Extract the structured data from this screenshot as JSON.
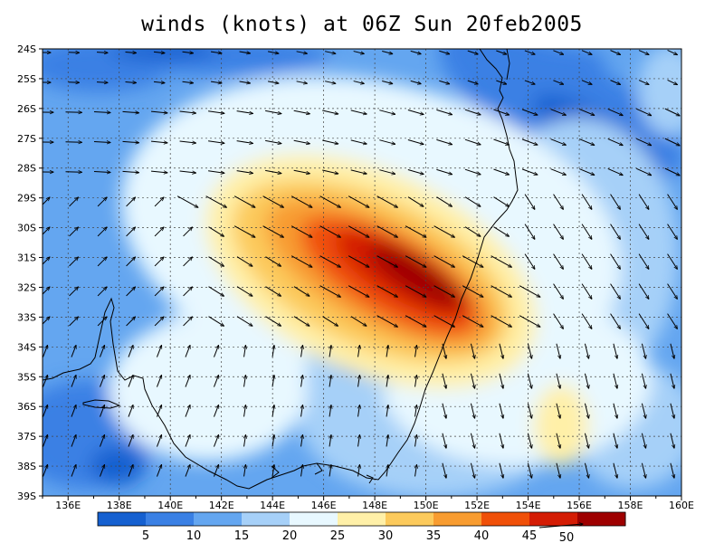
{
  "title": "winds (knots) at 06Z Sun 20feb2005",
  "map": {
    "lat_labels": [
      "24S",
      "25S",
      "26S",
      "27S",
      "28S",
      "29S",
      "30S",
      "31S",
      "32S",
      "33S",
      "34S",
      "35S",
      "36S",
      "37S",
      "38S",
      "39S"
    ],
    "lon_labels": [
      "136E",
      "138E",
      "140E",
      "142E",
      "144E",
      "146E",
      "148E",
      "150E",
      "152E",
      "154E",
      "156E",
      "158E",
      "160E"
    ],
    "lon_range": [
      135,
      160
    ],
    "lat_range": [
      -39,
      -24
    ],
    "grid": "dotted"
  },
  "colorbar": {
    "colors": [
      "#1560d0",
      "#3a80e4",
      "#64a6f0",
      "#a6d0f8",
      "#e8f8ff",
      "#fff0a8",
      "#fcca5c",
      "#f89c30",
      "#f05008",
      "#d41c04",
      "#9e0000"
    ],
    "labels": [
      "5",
      "10",
      "15",
      "20",
      "25",
      "30",
      "35",
      "40",
      "45"
    ],
    "reference_vector_label": "50"
  },
  "colors": {
    "coastline": "#000000",
    "vectors": "#000000"
  }
}
